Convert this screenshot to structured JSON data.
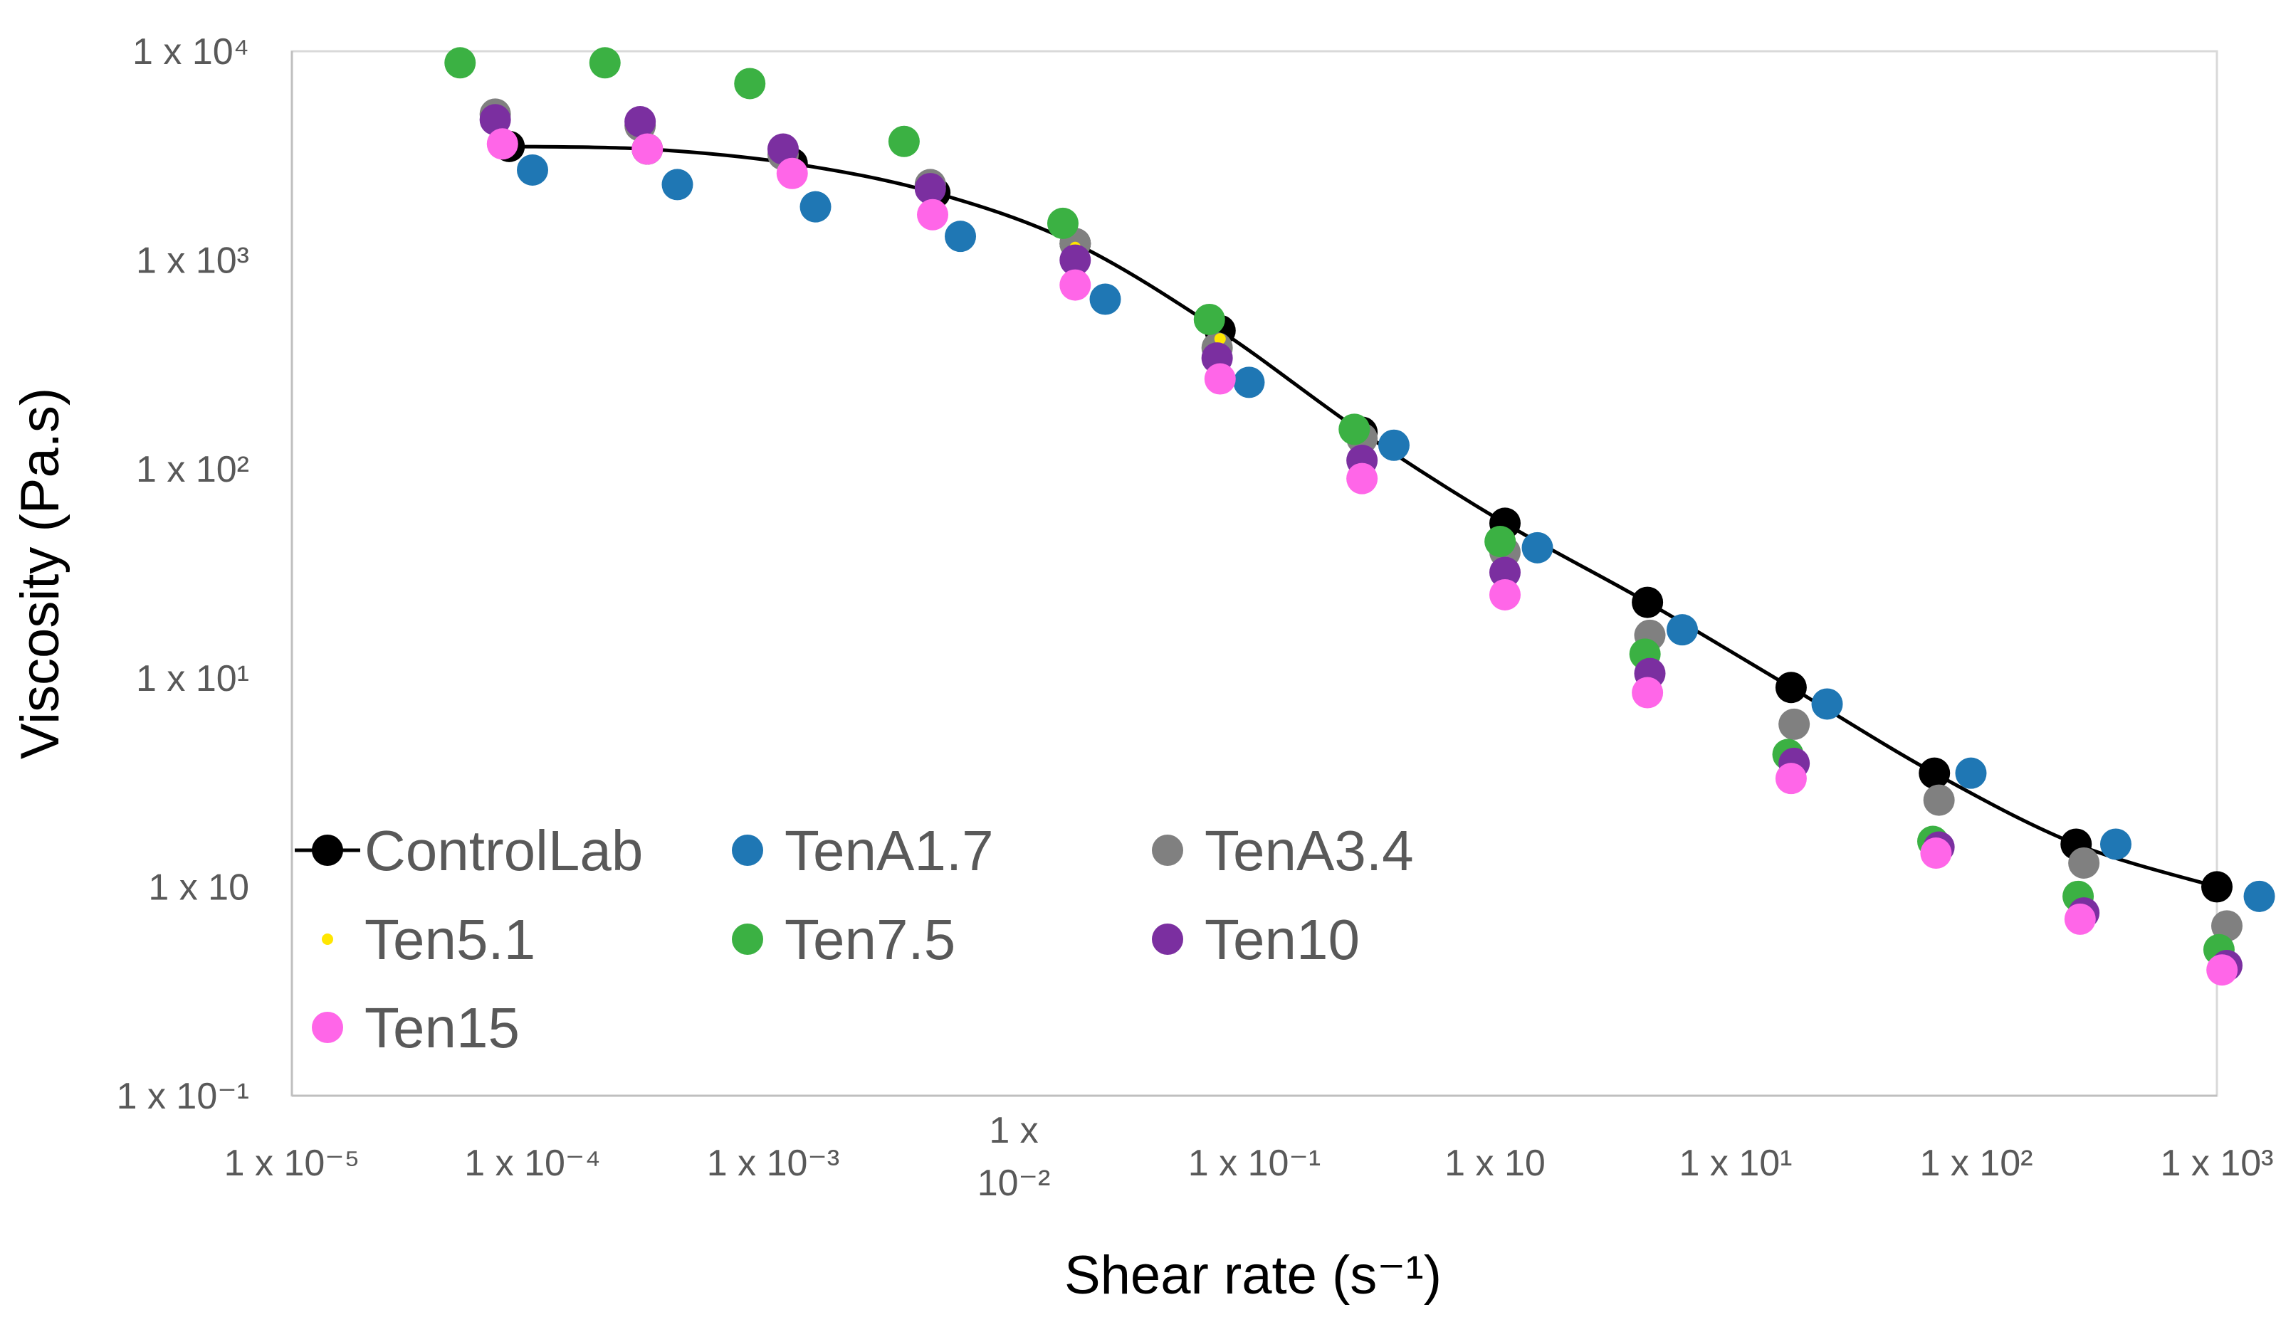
{
  "chart_data": {
    "type": "scatter",
    "title": "",
    "xlabel": "Shear rate (s⁻¹)",
    "ylabel": "Viscosity (Pa.s)",
    "xscale": "log",
    "yscale": "log",
    "xlim": [
      1e-05,
      1000
    ],
    "ylim": [
      0.1,
      10000
    ],
    "grid": false,
    "legend_position": "bottom-left",
    "x_tick_labels": [
      {
        "value": 1e-05,
        "lines": [
          "1 x 10⁻⁵"
        ]
      },
      {
        "value": 0.0001,
        "lines": [
          "1 x 10⁻⁴"
        ]
      },
      {
        "value": 0.001,
        "lines": [
          "1 x 10⁻³"
        ]
      },
      {
        "value": 0.01,
        "lines": [
          "1 x",
          "10⁻²"
        ]
      },
      {
        "value": 0.1,
        "lines": [
          "1 x 10⁻¹"
        ]
      },
      {
        "value": 1,
        "lines": [
          "1 x 10"
        ]
      },
      {
        "value": 10,
        "lines": [
          "1 x 10¹"
        ]
      },
      {
        "value": 100,
        "lines": [
          "1 x 10²"
        ]
      },
      {
        "value": 1000,
        "lines": [
          "1 x 10³"
        ]
      }
    ],
    "y_tick_labels": [
      {
        "value": 10000,
        "label": "1 x 10⁴"
      },
      {
        "value": 1000,
        "label": "1 x 10³"
      },
      {
        "value": 100,
        "label": "1 x 10²"
      },
      {
        "value": 10,
        "label": "1 x 10¹"
      },
      {
        "value": 1,
        "label": "1 x 10"
      },
      {
        "value": 0.1,
        "label": "1 x 10⁻¹"
      }
    ],
    "series": [
      {
        "name": "ControlLab",
        "color": "#000000",
        "marker": "circle",
        "line": true,
        "x": [
          8e-05,
          0.0003,
          0.0012,
          0.0047,
          0.018,
          0.072,
          0.28,
          1.1,
          4.3,
          17,
          67,
          260,
          1000
        ],
        "y": [
          3500,
          3400,
          2900,
          2100,
          1200,
          460,
          150,
          55,
          23,
          9,
          3.5,
          1.6,
          1.0
        ]
      },
      {
        "name": "TenA1.7",
        "color": "#1F77B4",
        "marker": "circle",
        "line": false,
        "x": [
          0.0001,
          0.0004,
          0.0015,
          0.006,
          0.024,
          0.095,
          0.38,
          1.5,
          6,
          24,
          95,
          380,
          1500
        ],
        "y": [
          2700,
          2300,
          1800,
          1300,
          650,
          260,
          130,
          42,
          17,
          7.5,
          3.5,
          1.6,
          0.9
        ]
      },
      {
        "name": "TenA3.4",
        "color": "#808080",
        "marker": "circle",
        "line": false,
        "x": [
          7e-05,
          0.00028,
          0.0011,
          0.0045,
          0.018,
          0.07,
          0.28,
          1.1,
          4.4,
          17.5,
          70,
          280,
          1100
        ],
        "y": [
          5000,
          4400,
          3200,
          2300,
          1200,
          380,
          140,
          40,
          16,
          6,
          2.6,
          1.3,
          0.65
        ]
      },
      {
        "name": "Ten5.1",
        "color": "#FFE600",
        "marker": "dot",
        "line": false,
        "x": [
          7.5e-05,
          0.0003,
          0.0012,
          0.0046,
          0.018,
          0.072,
          0.28,
          1.1,
          4.3,
          17,
          68,
          270,
          1050
        ],
        "y": [
          4200,
          3800,
          2900,
          2100,
          1150,
          420,
          150,
          45,
          14,
          4.5,
          1.7,
          0.9,
          0.5
        ]
      },
      {
        "name": "Ten7.5",
        "color": "#3BB143",
        "marker": "circle",
        "line": false,
        "x": [
          5e-05,
          0.0002,
          0.0008,
          0.0035,
          0.016,
          0.065,
          0.26,
          1.05,
          4.2,
          16.5,
          66,
          265,
          1020
        ],
        "y": [
          8800,
          8800,
          7000,
          3700,
          1500,
          520,
          155,
          45,
          13,
          4.3,
          1.65,
          0.9,
          0.5
        ]
      },
      {
        "name": "Ten10",
        "color": "#7B2FA0",
        "marker": "circle",
        "line": false,
        "x": [
          7e-05,
          0.00028,
          0.0011,
          0.0045,
          0.018,
          0.07,
          0.28,
          1.1,
          4.4,
          17.5,
          70,
          280,
          1100
        ],
        "y": [
          4700,
          4600,
          3400,
          2200,
          1000,
          340,
          110,
          32,
          10.5,
          3.9,
          1.55,
          0.75,
          0.42
        ]
      },
      {
        "name": "Ten15",
        "color": "#FF66E8",
        "marker": "circle",
        "line": false,
        "x": [
          7.5e-05,
          0.0003,
          0.0012,
          0.0046,
          0.018,
          0.072,
          0.28,
          1.1,
          4.3,
          17,
          68,
          270,
          1050
        ],
        "y": [
          3600,
          3400,
          2600,
          1650,
          760,
          270,
          90,
          25,
          8.5,
          3.3,
          1.45,
          0.7,
          0.4
        ]
      }
    ]
  }
}
